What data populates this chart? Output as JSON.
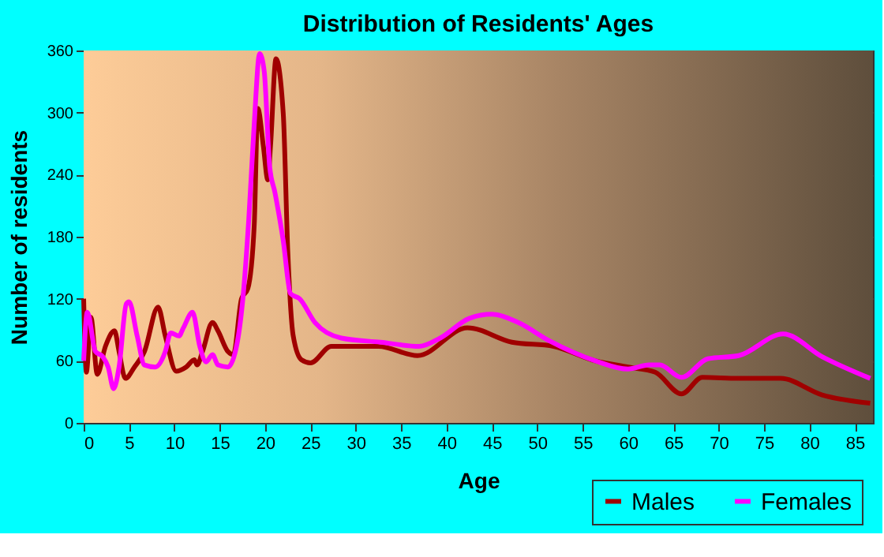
{
  "chart_data": {
    "type": "line",
    "title": "Distribution of Residents' Ages",
    "xlabel": "Age",
    "ylabel": "Number of residents",
    "xlim": [
      0,
      87
    ],
    "xticks": [
      0,
      5,
      10,
      15,
      20,
      25,
      30,
      35,
      40,
      45,
      50,
      55,
      60,
      65,
      70,
      75,
      80,
      85
    ],
    "ylim": [
      0,
      360
    ],
    "yticks": [
      0,
      60,
      120,
      180,
      240,
      300,
      360
    ],
    "grid": true,
    "legend": "bottom right",
    "marker": "none",
    "line_style": "solid",
    "series": [
      {
        "name": "Males",
        "color": "#a00000",
        "x": [
          0,
          0.3,
          0.8,
          1.5,
          2.4,
          3.4,
          3.9,
          4.6,
          5.6,
          6.7,
          8.2,
          9,
          10.2,
          11.3,
          12.2,
          12.5,
          13.1,
          14.2,
          14.8,
          15.9,
          16.5,
          17.4,
          18.1,
          18.8,
          19.2,
          19.8,
          20.3,
          20.6,
          21.2,
          22,
          22.5,
          23.1,
          24,
          25,
          27.3,
          32.5,
          36.8,
          42.3,
          47.2,
          51.8,
          56.4,
          60,
          63,
          65.9,
          68.2,
          72.2,
          76.8,
          81.4,
          86.7
        ],
        "values": [
          120,
          49,
          102,
          47,
          74,
          89,
          69,
          43,
          54,
          69,
          112,
          84,
          50,
          54,
          61,
          56,
          69,
          97,
          89,
          69,
          66,
          120,
          130,
          191,
          304,
          268,
          235,
          268,
          352,
          299,
          166,
          84,
          61,
          58,
          74,
          74,
          65,
          92,
          78,
          74,
          60,
          54,
          49,
          28,
          44,
          43,
          43,
          27,
          19
        ]
      },
      {
        "name": "Females",
        "color": "#ff00ff",
        "x": [
          0,
          0.4,
          1.3,
          2.1,
          2.7,
          3.3,
          3.9,
          4.7,
          5,
          5.9,
          6.7,
          7.9,
          9,
          9.6,
          10.5,
          11,
          12,
          12.8,
          13.5,
          14.2,
          14.8,
          15.9,
          16.8,
          17.6,
          18.2,
          18.8,
          19.4,
          19.9,
          20.5,
          21.1,
          22,
          22.8,
          23.8,
          25.5,
          28.4,
          32.7,
          37,
          39.3,
          42.5,
          45,
          47.9,
          51.4,
          56.4,
          60,
          62.3,
          63.5,
          65.9,
          68.8,
          72.2,
          77.1,
          81.4,
          86.7
        ],
        "values": [
          60,
          107,
          69,
          64,
          54,
          33,
          54,
          115,
          117,
          84,
          56,
          54,
          69,
          87,
          84,
          92,
          107,
          74,
          59,
          66,
          56,
          54,
          72,
          125,
          197,
          289,
          357,
          340,
          248,
          222,
          176,
          125,
          120,
          97,
          82,
          78,
          74,
          82,
          101,
          105,
          97,
          79,
          60,
          52,
          56,
          56,
          44,
          62,
          65,
          86,
          64,
          43
        ]
      }
    ]
  }
}
